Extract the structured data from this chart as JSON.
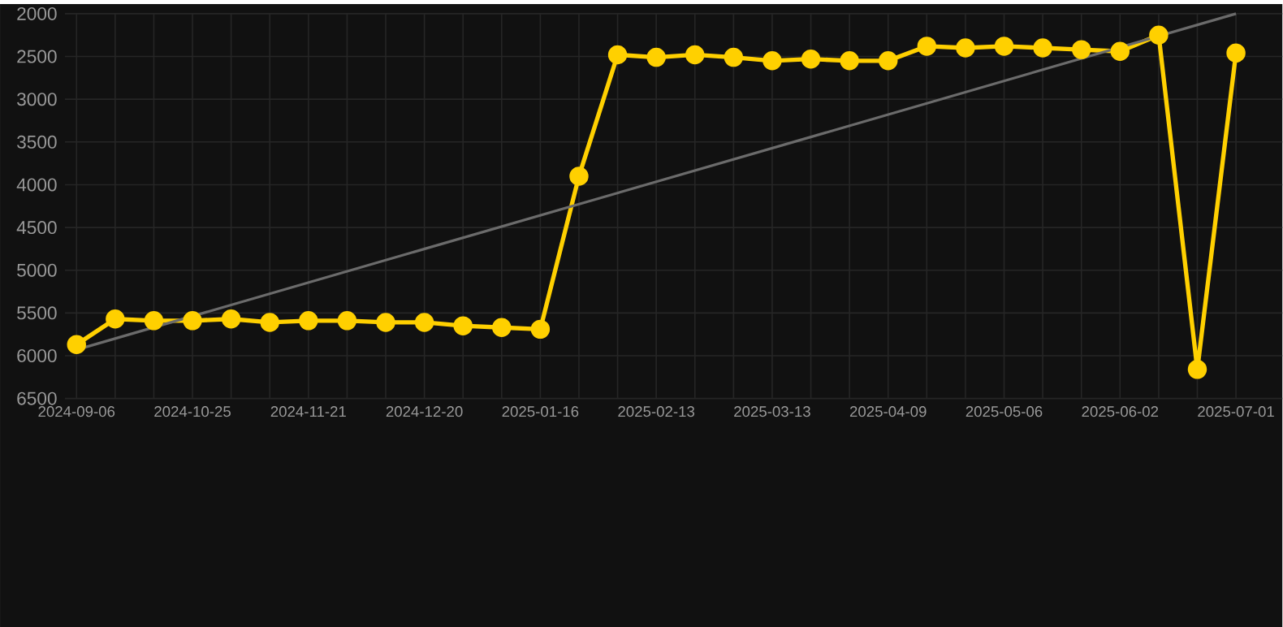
{
  "chart_data": {
    "type": "line",
    "categories": [
      "2024-09-06",
      null,
      null,
      "2024-10-25",
      null,
      null,
      "2024-11-21",
      null,
      null,
      "2024-12-20",
      null,
      null,
      "2025-01-16",
      null,
      null,
      "2025-02-13",
      null,
      null,
      "2025-03-13",
      null,
      null,
      "2025-04-09",
      null,
      null,
      "2025-05-06",
      null,
      null,
      "2025-06-02",
      null,
      null,
      "2025-07-01"
    ],
    "series": [
      {
        "color": "#ffd000",
        "values": [
          5870,
          5570,
          5590,
          5590,
          5570,
          5610,
          5590,
          5590,
          5610,
          5610,
          5650,
          5670,
          5690,
          3900,
          2480,
          2510,
          2480,
          2510,
          2550,
          2530,
          2550,
          2550,
          2380,
          2400,
          2380,
          2400,
          2420,
          2440,
          2250,
          6160,
          2460
        ]
      },
      {
        "type": "line",
        "color": "#6b6b6b",
        "marker": "none",
        "values": [
          5930,
          null,
          null,
          null,
          null,
          null,
          null,
          null,
          null,
          null,
          null,
          null,
          null,
          null,
          null,
          null,
          null,
          null,
          null,
          null,
          null,
          null,
          null,
          null,
          null,
          null,
          null,
          null,
          null,
          null,
          2000
        ]
      }
    ],
    "ylim": [
      6500,
      2000
    ],
    "yticks": [
      2000,
      2500,
      3000,
      3500,
      4000,
      4500,
      5000,
      5500,
      6000,
      6500
    ],
    "grid": true,
    "marker": "circle",
    "line_style": "solid"
  }
}
